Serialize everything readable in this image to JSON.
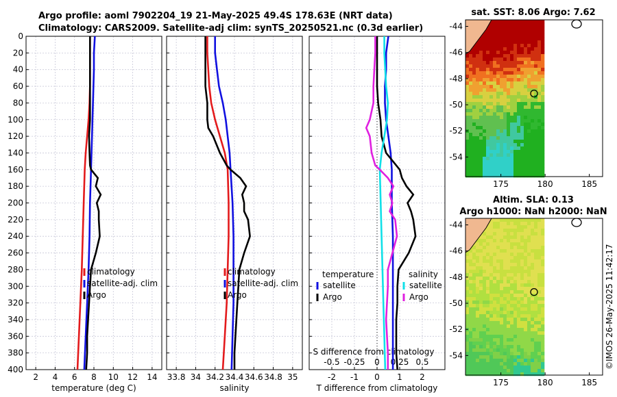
{
  "header": {
    "line1": "Argo profile: aoml 7902204_19 21-May-2025 49.4S 178.63E (NRT data)",
    "line2": "Climatology: CARS2009. Satellite-adj clim: synTS_20250521.nc (0.3d earlier)"
  },
  "side_stamp": "©IMOS 26-May-2025 11:42:17",
  "colors": {
    "climatology": "#e31a1c",
    "satellite": "#1010e0",
    "argo": "#000000",
    "sat_diff_salinity": "#10e0e8",
    "argo_diff_salinity": "#e020e0"
  },
  "chart_data": [
    {
      "type": "line",
      "name": "temperature-profile",
      "xlabel": "temperature (deg C)",
      "ylabel": "depth",
      "xlim": [
        1,
        15
      ],
      "ylim": [
        400,
        0
      ],
      "xticks": [
        "2",
        "4",
        "6",
        "8",
        "10",
        "12",
        "14"
      ],
      "yticks": [
        "0",
        "20",
        "40",
        "60",
        "80",
        "100",
        "120",
        "140",
        "160",
        "180",
        "200",
        "220",
        "240",
        "260",
        "280",
        "300",
        "320",
        "340",
        "360",
        "380",
        "400"
      ],
      "legend": [
        "climatology",
        "satellite-adj. clim",
        "Argo"
      ],
      "series": [
        {
          "name": "climatology",
          "depth": [
            0,
            20,
            40,
            60,
            80,
            100,
            120,
            140,
            160,
            200,
            240,
            280,
            320,
            360,
            400
          ],
          "values": [
            7.6,
            7.6,
            7.6,
            7.6,
            7.55,
            7.45,
            7.3,
            7.15,
            7.05,
            6.95,
            6.85,
            6.75,
            6.6,
            6.45,
            6.3
          ]
        },
        {
          "name": "satellite-adj. clim",
          "depth": [
            0,
            20,
            40,
            60,
            80,
            100,
            120,
            140,
            160,
            200,
            240,
            280,
            320,
            360,
            400
          ],
          "values": [
            8.1,
            8.0,
            8.0,
            7.95,
            7.9,
            7.85,
            7.8,
            7.75,
            7.7,
            7.6,
            7.55,
            7.45,
            7.3,
            7.15,
            7.0
          ]
        },
        {
          "name": "Argo",
          "depth": [
            0,
            20,
            40,
            60,
            80,
            100,
            120,
            140,
            155,
            160,
            170,
            180,
            190,
            200,
            210,
            220,
            240,
            260,
            280,
            300,
            320,
            340,
            360,
            380,
            400
          ],
          "values": [
            7.6,
            7.6,
            7.6,
            7.6,
            7.6,
            7.6,
            7.5,
            7.55,
            7.6,
            7.7,
            8.4,
            8.2,
            8.7,
            8.3,
            8.5,
            8.5,
            8.6,
            8.2,
            7.7,
            7.6,
            7.5,
            7.4,
            7.3,
            7.3,
            7.2
          ]
        }
      ]
    },
    {
      "type": "line",
      "name": "salinity-profile",
      "xlabel": "salinity",
      "ylabel": "depth",
      "xlim": [
        33.7,
        35.1
      ],
      "ylim": [
        400,
        0
      ],
      "xticks": [
        "33.8",
        "34",
        "34.2",
        "34.4",
        "34.6",
        "34.8",
        "35"
      ],
      "legend": [
        "climatology",
        "satellite-adj. clim",
        "Argo"
      ],
      "series": [
        {
          "name": "climatology",
          "depth": [
            0,
            20,
            40,
            60,
            80,
            100,
            120,
            140,
            160,
            200,
            240,
            280,
            320,
            360,
            400
          ],
          "values": [
            34.12,
            34.12,
            34.13,
            34.14,
            34.16,
            34.2,
            34.25,
            34.3,
            34.33,
            34.34,
            34.34,
            34.33,
            34.32,
            34.3,
            34.28
          ]
        },
        {
          "name": "satellite-adj. clim",
          "depth": [
            0,
            20,
            40,
            60,
            80,
            100,
            120,
            140,
            160,
            200,
            240,
            280,
            320,
            360,
            400
          ],
          "values": [
            34.2,
            34.2,
            34.22,
            34.24,
            34.28,
            34.31,
            34.33,
            34.35,
            34.36,
            34.38,
            34.39,
            34.39,
            34.39,
            34.38,
            34.37
          ]
        },
        {
          "name": "Argo",
          "depth": [
            0,
            20,
            40,
            60,
            80,
            100,
            110,
            120,
            140,
            155,
            160,
            170,
            180,
            190,
            200,
            210,
            220,
            240,
            260,
            280,
            300,
            320,
            340,
            360,
            380,
            400
          ],
          "values": [
            34.1,
            34.1,
            34.1,
            34.1,
            34.12,
            34.12,
            34.13,
            34.18,
            34.25,
            34.32,
            34.36,
            34.46,
            34.52,
            34.48,
            34.5,
            34.5,
            34.54,
            34.56,
            34.5,
            34.45,
            34.44,
            34.43,
            34.42,
            34.41,
            34.4,
            34.4
          ]
        }
      ]
    },
    {
      "type": "line",
      "name": "difference-profile",
      "xlabel": "T difference from climatology",
      "xlabel2": "S difference from climatology",
      "xlim": [
        -3,
        3
      ],
      "ylim": [
        400,
        0
      ],
      "xticks": [
        "-2",
        "-1",
        "0",
        "1",
        "2"
      ],
      "xticks2": [
        "-0.5",
        "-0.25",
        "0",
        "0.25",
        "0.5"
      ],
      "legend_titles": [
        "temperature",
        "salinity"
      ],
      "legend": [
        "satellite",
        "Argo",
        "satellite",
        "Argo"
      ],
      "series": [
        {
          "name": "temperature satellite",
          "depth": [
            0,
            20,
            40,
            60,
            80,
            100,
            120,
            140,
            160,
            200,
            240,
            280,
            320,
            360,
            400
          ],
          "values": [
            0.5,
            0.4,
            0.4,
            0.35,
            0.35,
            0.4,
            0.5,
            0.6,
            0.65,
            0.65,
            0.7,
            0.7,
            0.7,
            0.7,
            0.7
          ]
        },
        {
          "name": "temperature Argo",
          "depth": [
            0,
            20,
            40,
            60,
            80,
            100,
            120,
            140,
            150,
            160,
            170,
            180,
            190,
            200,
            210,
            220,
            240,
            260,
            280,
            300,
            320,
            340,
            360,
            380,
            400
          ],
          "values": [
            0.0,
            0.0,
            0.0,
            0.0,
            0.05,
            0.15,
            0.2,
            0.4,
            0.7,
            1.0,
            1.1,
            1.3,
            1.6,
            1.35,
            1.5,
            1.6,
            1.7,
            1.4,
            0.95,
            0.9,
            0.9,
            0.85,
            0.85,
            0.85,
            0.9
          ]
        },
        {
          "name": "salinity satellite",
          "depth": [
            0,
            20,
            40,
            60,
            80,
            100,
            120,
            140,
            160,
            200,
            240,
            280,
            320,
            360,
            400
          ],
          "values": [
            0.08,
            0.08,
            0.09,
            0.1,
            0.12,
            0.11,
            0.08,
            0.05,
            0.03,
            0.04,
            0.05,
            0.06,
            0.07,
            0.08,
            0.09
          ]
        },
        {
          "name": "salinity Argo",
          "depth": [
            0,
            20,
            40,
            60,
            80,
            100,
            110,
            120,
            140,
            155,
            160,
            170,
            180,
            190,
            200,
            210,
            220,
            240,
            260,
            280,
            300,
            320,
            340,
            360,
            380,
            400
          ],
          "values": [
            -0.02,
            -0.02,
            -0.03,
            -0.04,
            -0.04,
            -0.08,
            -0.12,
            -0.08,
            -0.06,
            -0.02,
            0.03,
            0.12,
            0.18,
            0.14,
            0.17,
            0.14,
            0.2,
            0.22,
            0.17,
            0.12,
            0.12,
            0.11,
            0.1,
            0.11,
            0.12,
            0.12
          ]
        }
      ]
    },
    {
      "type": "heatmap",
      "name": "sst-map",
      "title": "sat. SST: 8.06 Argo: 7.62",
      "xticks": [
        "175",
        "180",
        "185"
      ],
      "yticks": [
        "-44",
        "-46",
        "-48",
        "-50",
        "-52",
        "-54"
      ]
    },
    {
      "type": "heatmap",
      "name": "sla-map",
      "title1": "Altim. SLA: 0.13",
      "title2": "Argo h1000: NaN h2000: NaN",
      "xticks": [
        "175",
        "180",
        "185"
      ],
      "yticks": [
        "-44",
        "-46",
        "-48",
        "-50",
        "-52",
        "-54"
      ]
    }
  ]
}
